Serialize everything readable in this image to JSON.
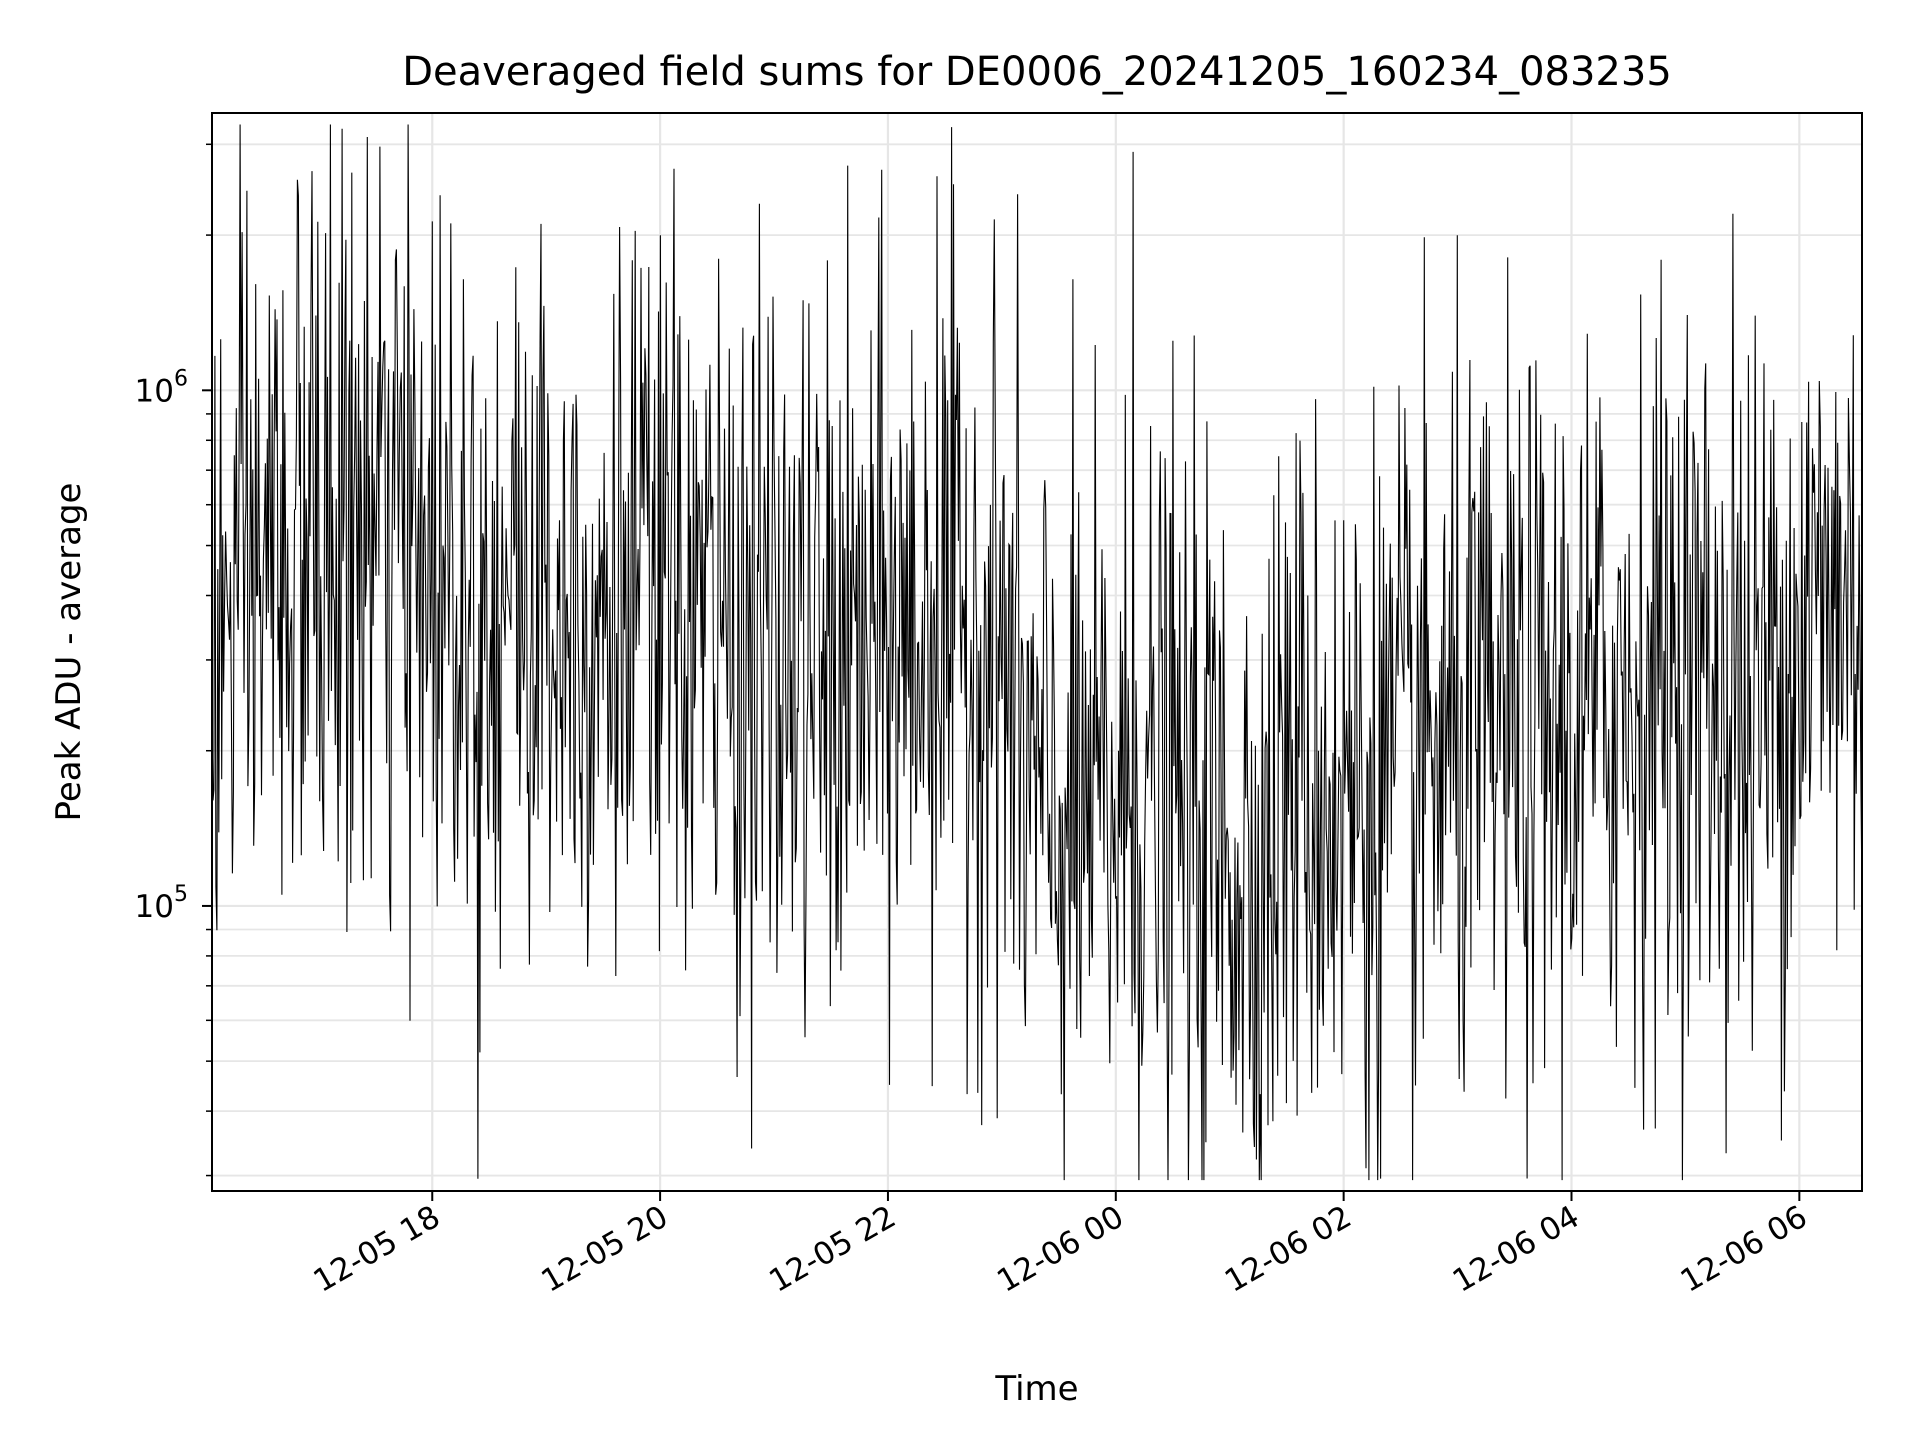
{
  "chart_data": {
    "type": "line",
    "title": "Deaveraged field sums for DE0006_20241205_160234_083235",
    "xlabel": "Time",
    "ylabel": "Peak ADU - average",
    "yscale": "log",
    "xlim": [
      "2024-12-05 16:04",
      "2024-12-06 06:33"
    ],
    "ylim": [
      28000,
      3450000
    ],
    "x_ticks": [
      "12-05 18",
      "12-05 20",
      "12-05 22",
      "12-06 00",
      "12-06 02",
      "12-06 04",
      "12-06 06"
    ],
    "y_ticks": [
      {
        "value": 100000,
        "base": "10",
        "exp": "5"
      },
      {
        "value": 1000000,
        "base": "10",
        "exp": "6"
      }
    ],
    "grid": true,
    "line_color": "#000000",
    "series": [
      {
        "sampling": "approx. one point every 30 s",
        "median_profile": [
          {
            "x": "2024-12-05 16:04",
            "y": 300000
          },
          {
            "x": "2024-12-05 16:30",
            "y": 450000
          },
          {
            "x": "2024-12-05 17:00",
            "y": 500000
          },
          {
            "x": "2024-12-05 17:30",
            "y": 520000
          },
          {
            "x": "2024-12-05 18:00",
            "y": 480000
          },
          {
            "x": "2024-12-05 18:30",
            "y": 420000
          },
          {
            "x": "2024-12-05 19:00",
            "y": 400000
          },
          {
            "x": "2024-12-05 19:30",
            "y": 380000
          },
          {
            "x": "2024-12-05 20:00",
            "y": 400000
          },
          {
            "x": "2024-12-05 20:30",
            "y": 350000
          },
          {
            "x": "2024-12-05 21:00",
            "y": 300000
          },
          {
            "x": "2024-12-05 21:30",
            "y": 280000
          },
          {
            "x": "2024-12-05 22:00",
            "y": 320000
          },
          {
            "x": "2024-12-05 22:30",
            "y": 350000
          },
          {
            "x": "2024-12-05 23:00",
            "y": 320000
          },
          {
            "x": "2024-12-05 23:15",
            "y": 160000
          },
          {
            "x": "2024-12-05 23:30",
            "y": 140000
          },
          {
            "x": "2024-12-06 00:00",
            "y": 150000
          },
          {
            "x": "2024-12-06 00:30",
            "y": 160000
          },
          {
            "x": "2024-12-06 01:00",
            "y": 130000
          },
          {
            "x": "2024-12-06 01:15",
            "y": 110000
          },
          {
            "x": "2024-12-06 01:30",
            "y": 180000
          },
          {
            "x": "2024-12-06 02:00",
            "y": 160000
          },
          {
            "x": "2024-12-06 02:30",
            "y": 180000
          },
          {
            "x": "2024-12-06 03:00",
            "y": 200000
          },
          {
            "x": "2024-12-06 03:30",
            "y": 210000
          },
          {
            "x": "2024-12-06 04:00",
            "y": 220000
          },
          {
            "x": "2024-12-06 04:30",
            "y": 260000
          },
          {
            "x": "2024-12-06 05:00",
            "y": 300000
          },
          {
            "x": "2024-12-06 05:30",
            "y": 220000
          },
          {
            "x": "2024-12-06 06:00",
            "y": 350000
          },
          {
            "x": "2024-12-06 06:33",
            "y": 420000
          }
        ],
        "spread_factor": 3.0,
        "notable_values": [
          {
            "x": "2024-12-05 17:26",
            "y": 3100000
          },
          {
            "x": "2024-12-05 18:25",
            "y": 52000
          },
          {
            "x": "2024-12-05 22:26",
            "y": 2600000
          },
          {
            "x": "2024-12-06 00:09",
            "y": 2900000
          },
          {
            "x": "2024-12-06 02:12",
            "y": 31000
          },
          {
            "x": "2024-12-06 05:25",
            "y": 2200000
          }
        ]
      }
    ]
  }
}
